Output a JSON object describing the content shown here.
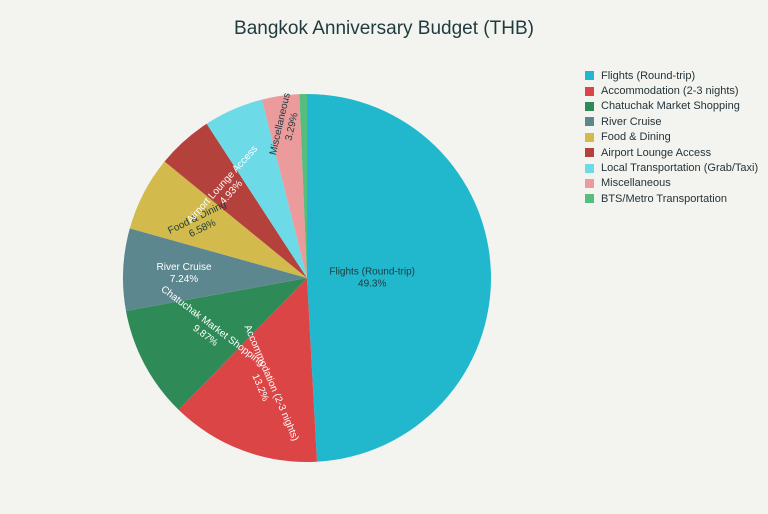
{
  "chart_data": {
    "type": "pie",
    "title": "Bangkok Anniversary Budget (THB)",
    "legend_position": "top-right",
    "slices": [
      {
        "label": "Flights (Round-trip)",
        "value": 49.3,
        "pct_label": "49.3%",
        "color": "#21b8cd"
      },
      {
        "label": "Accommodation (2-3 nights)",
        "value": 13.2,
        "pct_label": "13.2%",
        "color": "#db4545"
      },
      {
        "label": "Chatuchak Market Shopping",
        "value": 9.87,
        "pct_label": "9.87%",
        "color": "#2e8b57"
      },
      {
        "label": "River Cruise",
        "value": 7.24,
        "pct_label": "7.24%",
        "color": "#5d878f"
      },
      {
        "label": "Food & Dining",
        "value": 6.58,
        "pct_label": "6.58%",
        "color": "#d2ba4c"
      },
      {
        "label": "Airport Lounge Access",
        "value": 4.93,
        "pct_label": "4.93%",
        "color": "#b4413c"
      },
      {
        "label": "Local Transportation (Grab/Taxi)",
        "value": 5.26,
        "pct_label": "",
        "color": "#6ddae8"
      },
      {
        "label": "Miscellaneous",
        "value": 3.29,
        "pct_label": "3.29%",
        "color": "#eb9b9b"
      },
      {
        "label": "BTS/Metro Transportation",
        "value": 0.66,
        "pct_label": "",
        "color": "#55bd7d"
      }
    ]
  }
}
